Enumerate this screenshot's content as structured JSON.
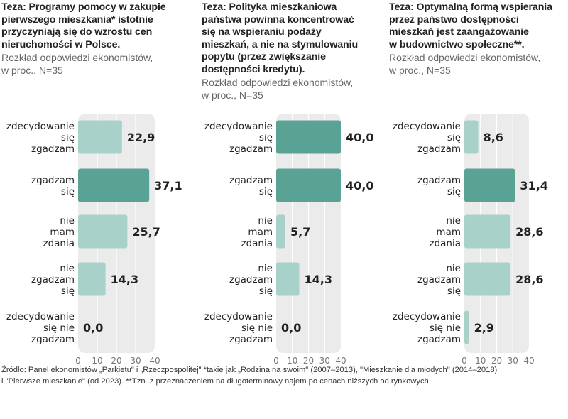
{
  "colors": {
    "bar_light": "#a8d2c9",
    "bar_dark": "#5aa394",
    "plot_bg": "#ebebeb",
    "grid": "#ffffff"
  },
  "chart_data": [
    {
      "type": "bar",
      "orientation": "horizontal",
      "title": "Teza: Programy pomocy w zakupie\npierwszego mieszkania* istotnie\nprzyczyniają się do wzrostu cen\nnieruchomości w Polsce.",
      "subtitle": "Rozkład odpowiedzi ekonomistów,\nw proc., N=35",
      "categories": [
        "zdecydowanie\nsię\nzgadzam",
        "zgadzam\nsię",
        "nie\nmam\nzdania",
        "nie\nzgadzam\nsię",
        "zdecydowanie\nsię nie\nzgadzam"
      ],
      "values": [
        22.9,
        37.1,
        25.7,
        14.3,
        0.0
      ],
      "value_labels": [
        "22,9",
        "37,1",
        "25,7",
        "14,3",
        "0,0"
      ],
      "highlight_index": 1,
      "xlim": [
        0,
        40
      ],
      "xticks": [
        "0",
        "10",
        "20",
        "30",
        "40"
      ],
      "grid": true
    },
    {
      "type": "bar",
      "orientation": "horizontal",
      "title": "Teza: Polityka mieszkaniowa\npaństwa powinna koncentrować\nsię na wspieraniu podaży\nmieszkań, a nie na stymulowaniu\npopytu (przez zwiększanie\ndostępności kredytu).",
      "subtitle": "Rozkład odpowiedzi ekonomistów,\nw proc., N=35",
      "categories": [
        "zdecydowanie\nsię\nzgadzam",
        "zgadzam\nsię",
        "nie\nmam\nzdania",
        "nie\nzgadzam\nsię",
        "zdecydowanie\nsię nie\nzgadzam"
      ],
      "values": [
        40.0,
        40.0,
        5.7,
        14.3,
        0.0
      ],
      "value_labels": [
        "40,0",
        "40,0",
        "5,7",
        "14,3",
        "0,0"
      ],
      "highlight_index": [
        0,
        1
      ],
      "xlim": [
        0,
        40
      ],
      "xticks": [
        "0",
        "10",
        "20",
        "30",
        "40"
      ],
      "grid": true
    },
    {
      "type": "bar",
      "orientation": "horizontal",
      "title": "Teza: Optymalną formą wspierania\nprzez państwo dostępności\nmieszkań jest zaangażowanie\nw budownictwo społeczne**.",
      "subtitle": "Rozkład odpowiedzi ekonomistów,\nw proc., N=35",
      "categories": [
        "zdecydowanie\nsię\nzgadzam",
        "zgadzam\nsię",
        "nie\nmam\nzdania",
        "nie\nzgadzam\nsię",
        "zdecydowanie\nsię nie\nzgadzam"
      ],
      "values": [
        8.6,
        31.4,
        28.6,
        28.6,
        2.9
      ],
      "value_labels": [
        "8,6",
        "31,4",
        "28,6",
        "28,6",
        "2,9"
      ],
      "highlight_index": 1,
      "xlim": [
        0,
        40
      ],
      "xticks": [
        "0",
        "10",
        "20",
        "30",
        "40"
      ],
      "grid": true
    }
  ],
  "footnote": "Źródło: Panel ekonomistów „Parkietu\" i „Rzeczpospolitej\" *takie jak  „Rodzina na swoim\" (2007–2013), \"Mieszkanie dla młodych\" (2014–2018)\ni \"Pierwsze mieszkanie\" (od 2023). **Tzn. z przeznaczeniem na długoterminowy najem po cenach niższych od rynkowych."
}
